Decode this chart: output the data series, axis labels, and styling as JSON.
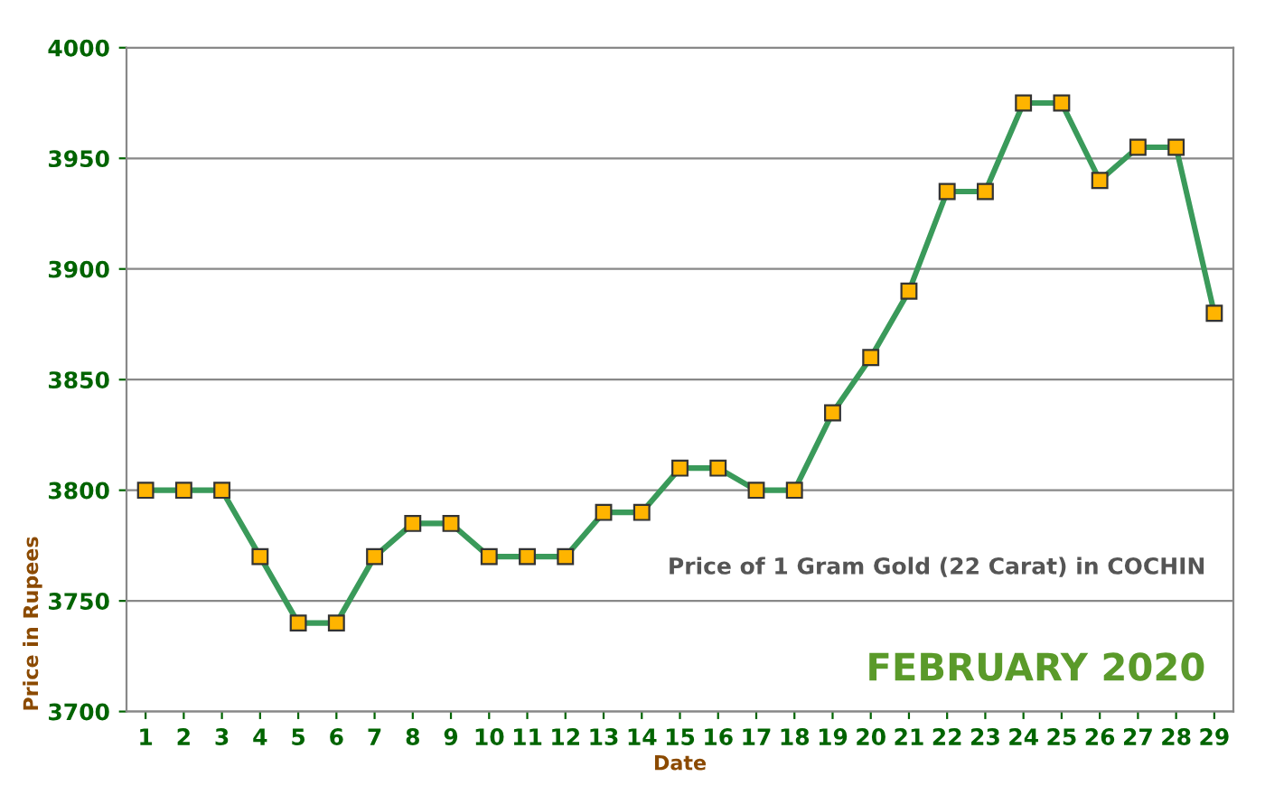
{
  "chart_data": {
    "type": "line",
    "title": "Price of 1 Gram Gold (22 Carat) in COCHIN",
    "subtitle": "FEBRUARY 2020",
    "xlabel": "Date",
    "ylabel": "Price in Rupees",
    "categories": [
      "1",
      "2",
      "3",
      "4",
      "5",
      "6",
      "7",
      "8",
      "9",
      "10",
      "11",
      "12",
      "13",
      "14",
      "15",
      "16",
      "17",
      "18",
      "19",
      "20",
      "21",
      "22",
      "23",
      "24",
      "25",
      "26",
      "27",
      "28",
      "29"
    ],
    "series": [
      {
        "color": "#3a9a5a",
        "values": [
          3800,
          3800,
          3800,
          3770,
          3740,
          3740,
          3770,
          3785,
          3785,
          3770,
          3770,
          3770,
          3790,
          3790,
          3810,
          3810,
          3800,
          3800,
          3835,
          3860,
          3890,
          3935,
          3935,
          3975,
          3975,
          3940,
          3955,
          3955,
          3880
        ]
      }
    ],
    "ylim": [
      3700,
      4000
    ],
    "yticks": [
      3700,
      3750,
      3800,
      3850,
      3900,
      3950,
      4000
    ],
    "grid": "y",
    "marker": "square",
    "line_style": "solid"
  }
}
